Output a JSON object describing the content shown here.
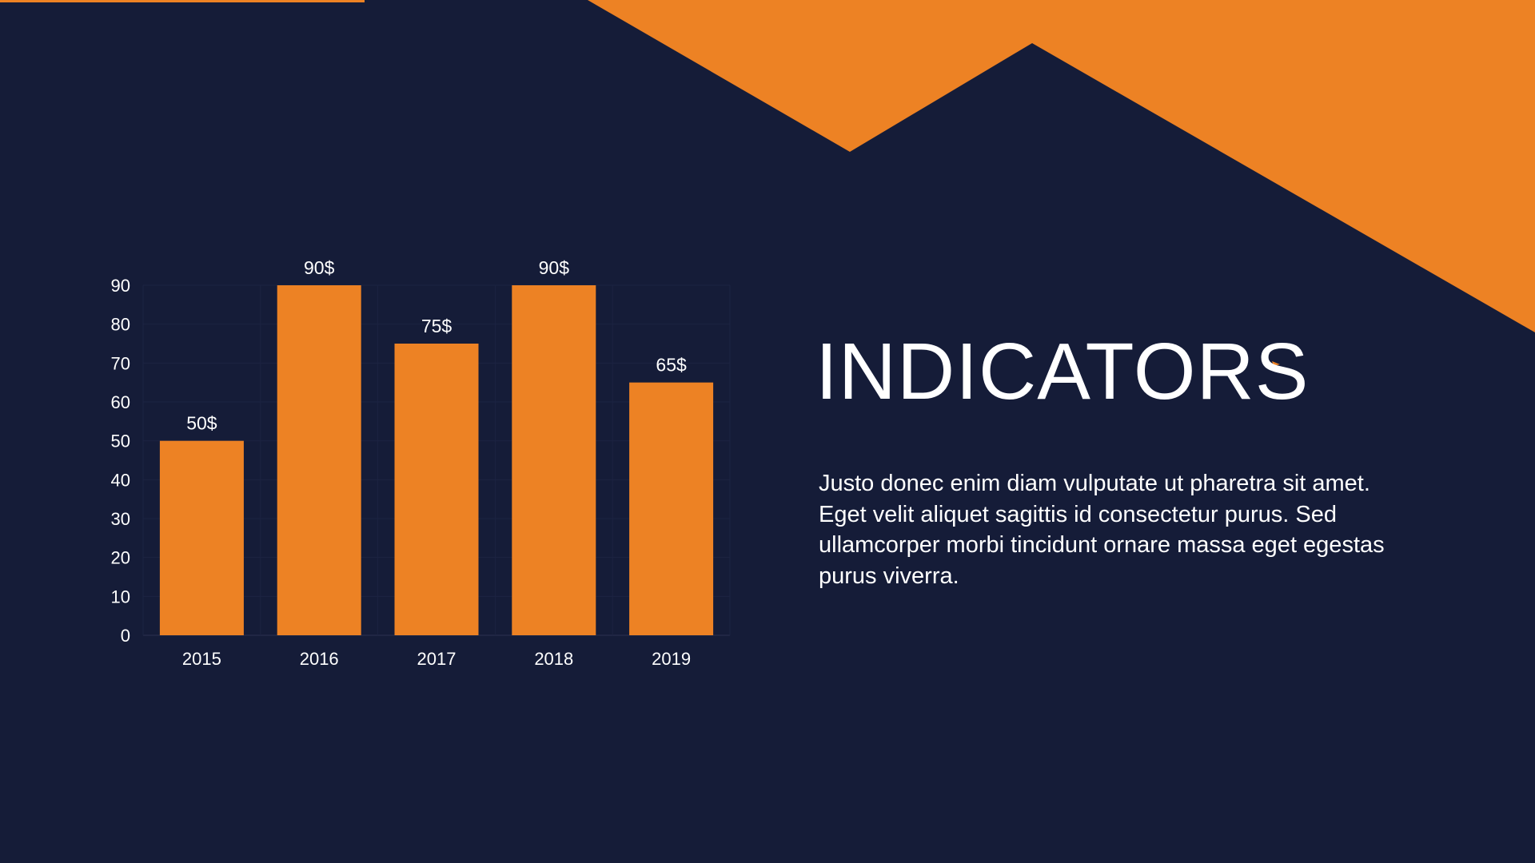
{
  "colors": {
    "background": "#151c38",
    "accent": "#ed8224",
    "text": "#ffffff"
  },
  "title": "INDICATORS",
  "body": "Justo donec enim diam vulputate ut pharetra sit amet. Eget velit aliquet sagittis id consectetur purus. Sed ullamcorper morbi tincidunt ornare massa eget egestas purus viverra.",
  "chart_data": {
    "type": "bar",
    "title": "",
    "xlabel": "",
    "ylabel": "",
    "categories": [
      "2015",
      "2016",
      "2017",
      "2018",
      "2019"
    ],
    "values": [
      50,
      90,
      75,
      90,
      65
    ],
    "data_labels": [
      "50$",
      "90$",
      "75$",
      "90$",
      "65$"
    ],
    "yticks": [
      0,
      10,
      20,
      30,
      40,
      50,
      60,
      70,
      80,
      90
    ],
    "ylim": [
      0,
      90
    ],
    "grid": true,
    "legend": "none"
  }
}
